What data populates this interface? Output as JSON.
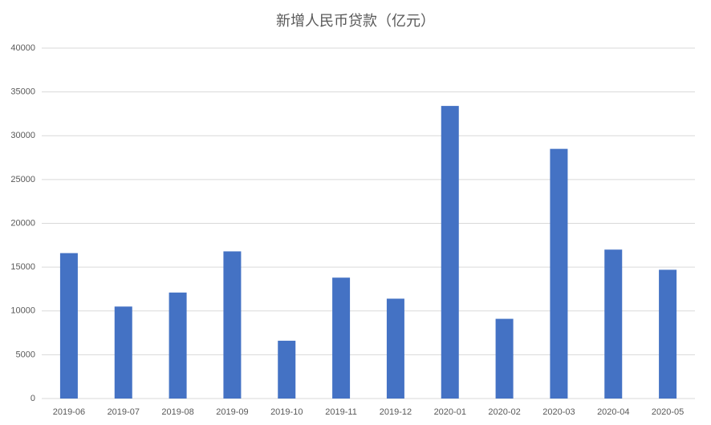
{
  "chart_data": {
    "type": "bar",
    "title": "新增人民币贷款（亿元）",
    "categories": [
      "2019-06",
      "2019-07",
      "2019-08",
      "2019-09",
      "2019-10",
      "2019-11",
      "2019-12",
      "2020-01",
      "2020-02",
      "2020-03",
      "2020-04",
      "2020-05"
    ],
    "values": [
      16600,
      10500,
      12100,
      16800,
      6600,
      13800,
      11400,
      33400,
      9100,
      28500,
      17000,
      14700
    ],
    "color": "#4472c4",
    "ylim": [
      0,
      40000
    ],
    "yticks": [
      0,
      5000,
      10000,
      15000,
      20000,
      25000,
      30000,
      35000,
      40000
    ],
    "grid": true
  }
}
